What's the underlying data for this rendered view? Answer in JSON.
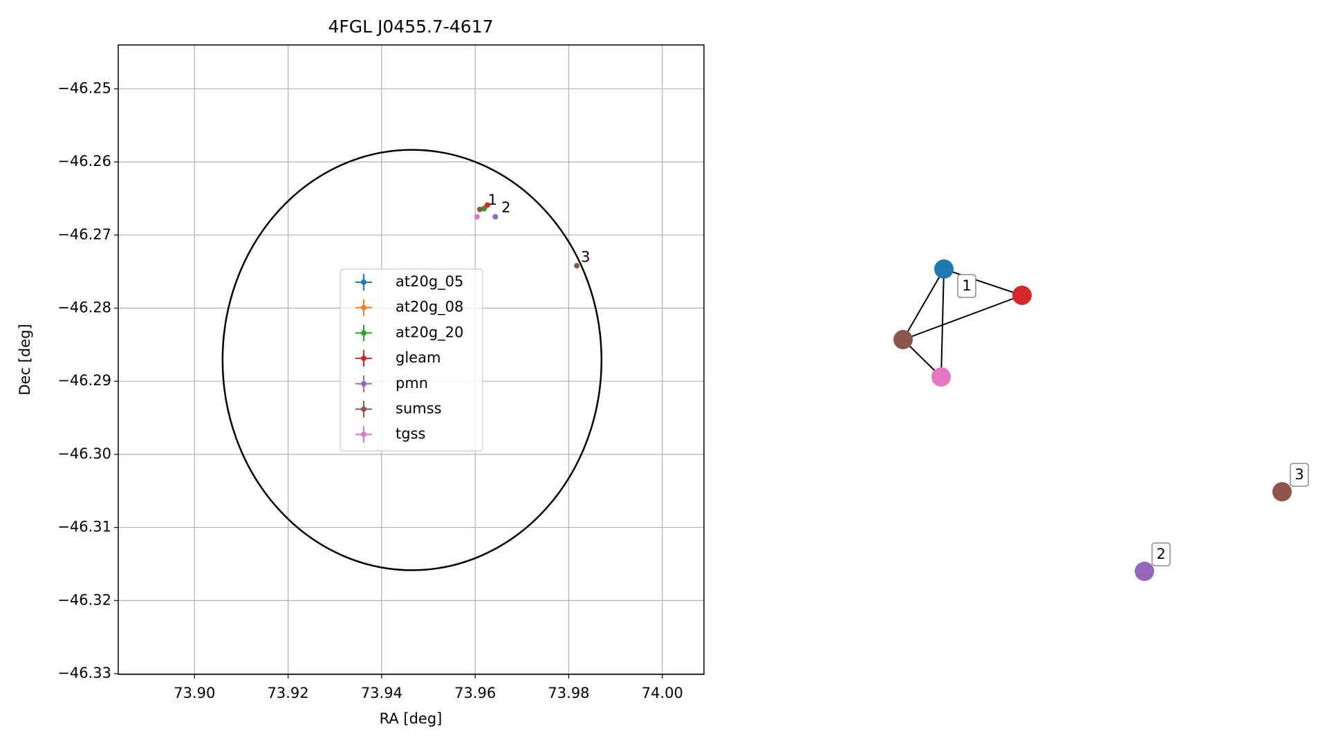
{
  "chart_data": [
    {
      "type": "scatter",
      "title": "4FGL J0455.7-4617",
      "x_label": "RA [deg]",
      "y_label": "Dec [deg]",
      "xlim": [
        73.8837,
        74.0089
      ],
      "ylim": [
        -46.3301,
        -46.244
      ],
      "xticks": [
        {
          "value": 73.9,
          "label": "73.90"
        },
        {
          "value": 73.92,
          "label": "73.92"
        },
        {
          "value": 73.94,
          "label": "73.94"
        },
        {
          "value": 73.96,
          "label": "73.96"
        },
        {
          "value": 73.98,
          "label": "73.98"
        },
        {
          "value": 74.0,
          "label": "74.00"
        }
      ],
      "yticks": [
        {
          "value": -46.25,
          "label": "−46.25"
        },
        {
          "value": -46.26,
          "label": "−46.26"
        },
        {
          "value": -46.27,
          "label": "−46.27"
        },
        {
          "value": -46.28,
          "label": "−46.28"
        },
        {
          "value": -46.29,
          "label": "−46.29"
        },
        {
          "value": -46.3,
          "label": "−46.30"
        },
        {
          "value": -46.31,
          "label": "−46.31"
        },
        {
          "value": -46.32,
          "label": "−46.32"
        },
        {
          "value": -46.33,
          "label": "−46.33"
        }
      ],
      "grid": true,
      "ellipse": {
        "center": [
          73.9465,
          -46.2871
        ],
        "width": 0.081,
        "height": 0.0575,
        "color": "#000000"
      },
      "series": [
        {
          "name": "at20g_05",
          "color": "#1f77b4",
          "x": [
            73.962
          ],
          "y": [
            -46.2663
          ]
        },
        {
          "name": "at20g_08",
          "color": "#ff7f0e",
          "x": [
            73.962
          ],
          "y": [
            -46.2663
          ]
        },
        {
          "name": "at20g_20",
          "color": "#2ca02c",
          "x": [
            73.9619
          ],
          "y": [
            -46.2664
          ]
        },
        {
          "name": "gleam",
          "color": "#d62728",
          "x": [
            73.9626
          ],
          "y": [
            -46.2659
          ]
        },
        {
          "name": "pmn",
          "color": "#9467bd",
          "x": [
            73.9643
          ],
          "y": [
            -46.2675
          ]
        },
        {
          "name": "sumss",
          "color": "#8c564b",
          "x": [
            73.961,
            73.9817
          ],
          "y": [
            -46.2665,
            -46.2742
          ]
        },
        {
          "name": "tgss",
          "color": "#e377c2",
          "x": [
            73.9604
          ],
          "y": [
            -46.2675
          ]
        }
      ],
      "annotations": [
        {
          "text": "1",
          "x": 73.9627,
          "y": -46.2655
        },
        {
          "text": "2",
          "x": 73.9656,
          "y": -46.2665
        },
        {
          "text": "3",
          "x": 73.9826,
          "y": -46.2733
        }
      ]
    },
    {
      "type": "graph",
      "nodes": [
        {
          "color": "#1f77b4"
        },
        {
          "color": "#d62728"
        },
        {
          "color": "#8c564b"
        },
        {
          "color": "#e377c2"
        },
        {
          "color": "#9467bd"
        },
        {
          "color": "#8c564b"
        }
      ],
      "edges": [
        [
          0,
          1
        ],
        [
          0,
          2
        ],
        [
          0,
          3
        ],
        [
          2,
          1
        ],
        [
          2,
          3
        ]
      ],
      "labels": [
        "1",
        "2",
        "3"
      ]
    }
  ]
}
